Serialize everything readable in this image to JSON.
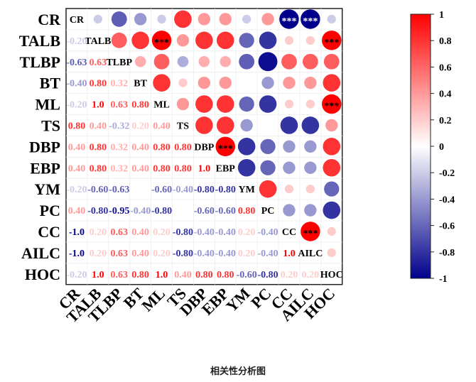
{
  "chart_data": {
    "type": "heatmap",
    "subtype": "correlation-matrix",
    "variables": [
      "CR",
      "TALB",
      "TLBP",
      "BT",
      "ML",
      "TS",
      "DBP",
      "EBP",
      "YM",
      "PC",
      "CC",
      "AILC",
      "HOC"
    ],
    "lower_triangle_text": [
      [
        "",
        "",
        "",
        "",
        "",
        "",
        "",
        "",
        "",
        "",
        "",
        "",
        ""
      ],
      [
        "-0.20",
        "",
        "",
        "",
        "",
        "",
        "",
        "",
        "",
        "",
        "",
        "",
        ""
      ],
      [
        "-0.63",
        "0.63",
        "",
        "",
        "",
        "",
        "",
        "",
        "",
        "",
        "",
        "",
        ""
      ],
      [
        "-0.40",
        "0.80",
        "0.32",
        "",
        "",
        "",
        "",
        "",
        "",
        "",
        "",
        "",
        ""
      ],
      [
        "-0.20",
        "1.0",
        "0.63",
        "0.80",
        "",
        "",
        "",
        "",
        "",
        "",
        "",
        "",
        ""
      ],
      [
        "0.80",
        "0.40",
        "-0.32",
        "0.20",
        "0.40",
        "",
        "",
        "",
        "",
        "",
        "",
        "",
        ""
      ],
      [
        "0.40",
        "0.80",
        "0.32",
        "0.40",
        "0.80",
        "0.80",
        "",
        "",
        "",
        "",
        "",
        "",
        ""
      ],
      [
        "0.40",
        "0.80",
        "0.32",
        "0.40",
        "0.80",
        "0.80",
        "1.0",
        "",
        "",
        "",
        "",
        "",
        ""
      ],
      [
        "-0.20",
        "-0.60",
        "-0.63",
        "",
        "-0.60",
        "-0.40",
        "-0.80",
        "-0.80",
        "",
        "",
        "",
        "",
        ""
      ],
      [
        "0.40",
        "-0.80",
        "-0.95",
        "-0.40",
        "-0.80",
        "",
        "-0.60",
        "-0.60",
        "0.80",
        "",
        "",
        "",
        ""
      ],
      [
        "-1.0",
        "0.20",
        "0.63",
        "0.40",
        "0.20",
        "-0.80",
        "-0.40",
        "-0.40",
        "0.20",
        "-0.40",
        "",
        "",
        ""
      ],
      [
        "-1.0",
        "0.20",
        "0.63",
        "0.40",
        "0.20",
        "-0.80",
        "-0.40",
        "-0.40",
        "0.20",
        "-0.40",
        "1.0",
        "",
        ""
      ],
      [
        "-0.20",
        "1.0",
        "0.63",
        "0.80",
        "1.0",
        "0.40",
        "0.80",
        "0.80",
        "-0.60",
        "-0.80",
        "0.20",
        "0.20",
        ""
      ]
    ],
    "upper_triangle_circles": [
      {
        "row": 0,
        "col": 1,
        "value": -0.2
      },
      {
        "row": 0,
        "col": 2,
        "value": -0.63
      },
      {
        "row": 0,
        "col": 3,
        "value": -0.4
      },
      {
        "row": 0,
        "col": 4,
        "value": -0.2
      },
      {
        "row": 0,
        "col": 5,
        "value": 0.8
      },
      {
        "row": 0,
        "col": 6,
        "value": 0.4
      },
      {
        "row": 0,
        "col": 7,
        "value": 0.4
      },
      {
        "row": 0,
        "col": 8,
        "value": -0.2
      },
      {
        "row": 0,
        "col": 9,
        "value": 0.4
      },
      {
        "row": 0,
        "col": 10,
        "value": -1.0,
        "sig": "***"
      },
      {
        "row": 0,
        "col": 11,
        "value": -1.0,
        "sig": "***"
      },
      {
        "row": 0,
        "col": 12,
        "value": -0.2
      },
      {
        "row": 1,
        "col": 2,
        "value": 0.63
      },
      {
        "row": 1,
        "col": 3,
        "value": 0.8
      },
      {
        "row": 1,
        "col": 4,
        "value": 1.0,
        "sig": "***"
      },
      {
        "row": 1,
        "col": 5,
        "value": 0.4
      },
      {
        "row": 1,
        "col": 6,
        "value": 0.8
      },
      {
        "row": 1,
        "col": 7,
        "value": 0.8
      },
      {
        "row": 1,
        "col": 8,
        "value": -0.6
      },
      {
        "row": 1,
        "col": 9,
        "value": -0.8
      },
      {
        "row": 1,
        "col": 10,
        "value": 0.2
      },
      {
        "row": 1,
        "col": 11,
        "value": 0.2
      },
      {
        "row": 1,
        "col": 12,
        "value": 1.0,
        "sig": "***"
      },
      {
        "row": 2,
        "col": 3,
        "value": 0.32
      },
      {
        "row": 2,
        "col": 4,
        "value": 0.63
      },
      {
        "row": 2,
        "col": 5,
        "value": -0.32
      },
      {
        "row": 2,
        "col": 6,
        "value": 0.32
      },
      {
        "row": 2,
        "col": 7,
        "value": 0.32
      },
      {
        "row": 2,
        "col": 8,
        "value": -0.63
      },
      {
        "row": 2,
        "col": 9,
        "value": -0.95
      },
      {
        "row": 2,
        "col": 10,
        "value": 0.63
      },
      {
        "row": 2,
        "col": 11,
        "value": 0.63
      },
      {
        "row": 2,
        "col": 12,
        "value": 0.63
      },
      {
        "row": 3,
        "col": 4,
        "value": 0.8
      },
      {
        "row": 3,
        "col": 5,
        "value": 0.2
      },
      {
        "row": 3,
        "col": 6,
        "value": 0.4
      },
      {
        "row": 3,
        "col": 7,
        "value": 0.4
      },
      {
        "row": 3,
        "col": 9,
        "value": -0.4
      },
      {
        "row": 3,
        "col": 10,
        "value": 0.4
      },
      {
        "row": 3,
        "col": 11,
        "value": 0.4
      },
      {
        "row": 3,
        "col": 12,
        "value": 0.8
      },
      {
        "row": 4,
        "col": 5,
        "value": 0.4
      },
      {
        "row": 4,
        "col": 6,
        "value": 0.8
      },
      {
        "row": 4,
        "col": 7,
        "value": 0.8
      },
      {
        "row": 4,
        "col": 8,
        "value": -0.6
      },
      {
        "row": 4,
        "col": 9,
        "value": -0.8
      },
      {
        "row": 4,
        "col": 10,
        "value": 0.2
      },
      {
        "row": 4,
        "col": 11,
        "value": 0.2
      },
      {
        "row": 4,
        "col": 12,
        "value": 1.0,
        "sig": "***"
      },
      {
        "row": 5,
        "col": 6,
        "value": 0.8
      },
      {
        "row": 5,
        "col": 7,
        "value": 0.8
      },
      {
        "row": 5,
        "col": 8,
        "value": -0.4
      },
      {
        "row": 5,
        "col": 10,
        "value": -0.8
      },
      {
        "row": 5,
        "col": 11,
        "value": -0.8
      },
      {
        "row": 5,
        "col": 12,
        "value": 0.4
      },
      {
        "row": 6,
        "col": 7,
        "value": 1.0,
        "sig": "***"
      },
      {
        "row": 6,
        "col": 8,
        "value": -0.8
      },
      {
        "row": 6,
        "col": 9,
        "value": -0.6
      },
      {
        "row": 6,
        "col": 10,
        "value": -0.4
      },
      {
        "row": 6,
        "col": 11,
        "value": -0.4
      },
      {
        "row": 6,
        "col": 12,
        "value": 0.8
      },
      {
        "row": 7,
        "col": 8,
        "value": -0.8
      },
      {
        "row": 7,
        "col": 9,
        "value": -0.6
      },
      {
        "row": 7,
        "col": 10,
        "value": -0.4
      },
      {
        "row": 7,
        "col": 11,
        "value": -0.4
      },
      {
        "row": 7,
        "col": 12,
        "value": 0.8
      },
      {
        "row": 8,
        "col": 9,
        "value": 0.8
      },
      {
        "row": 8,
        "col": 10,
        "value": 0.2
      },
      {
        "row": 8,
        "col": 11,
        "value": 0.2
      },
      {
        "row": 8,
        "col": 12,
        "value": -0.6
      },
      {
        "row": 9,
        "col": 10,
        "value": -0.4
      },
      {
        "row": 9,
        "col": 11,
        "value": -0.4
      },
      {
        "row": 9,
        "col": 12,
        "value": -0.8
      },
      {
        "row": 10,
        "col": 11,
        "value": 1.0,
        "sig": "***"
      },
      {
        "row": 10,
        "col": 12,
        "value": 0.2
      },
      {
        "row": 11,
        "col": 12,
        "value": 0.2
      }
    ],
    "colorbar": {
      "range": [
        -1,
        1
      ],
      "ticks": [
        "1",
        "0.8",
        "0.6",
        "0.4",
        "0.2",
        "0",
        "-0.2",
        "-0.4",
        "-0.6",
        "-0.8",
        "-1"
      ],
      "colors": {
        "negative": "#00008b",
        "zero": "#ffffff",
        "positive": "#ff0000"
      }
    },
    "caption": "相关性分析图"
  }
}
